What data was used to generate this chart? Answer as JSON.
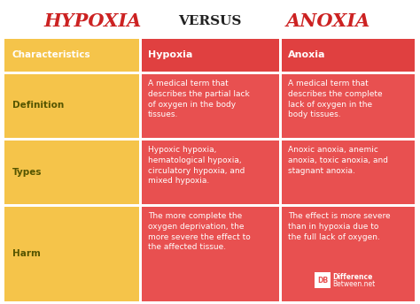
{
  "title_left": "HYPOXIA",
  "title_center": "VERSUS",
  "title_right": "ANOXIA",
  "title_left_color": "#cc2222",
  "title_center_color": "#222222",
  "title_right_color": "#cc2222",
  "bg_color": "#ffffff",
  "header_bg": "#e04040",
  "data_cell_bg": "#e85050",
  "row_left_bg": "#f5c44a",
  "header_text_color": "#ffffff",
  "left_label_color": "#ffffff",
  "right_text_color": "#ffffff",
  "col_labels": [
    "Characteristics",
    "Hypoxia",
    "Anoxia"
  ],
  "rows": [
    {
      "label": "Definition",
      "hypoxia": "A medical term that\ndescribes the partial lack\nof oxygen in the body\ntissues.",
      "anoxia": "A medical term that\ndescribes the complete\nlack of oxygen in the\nbody tissues."
    },
    {
      "label": "Types",
      "hypoxia": "Hypoxic hypoxia,\nhematological hypoxia,\ncirculatory hypoxia, and\nmixed hypoxia.",
      "anoxia": "Anoxic anoxia, anemic\nanoxia, toxic anoxia, and\nstagnant anoxia."
    },
    {
      "label": "Harm",
      "hypoxia": "The more complete the\noxygen deprivation, the\nmore severe the effect to\nthe affected tissue.",
      "anoxia": "The effect is more severe\nthan in hypoxia due to\nthe full lack of oxygen."
    }
  ],
  "watermark_top": "DB  Difference",
  "watermark_bot": "       Between.net"
}
